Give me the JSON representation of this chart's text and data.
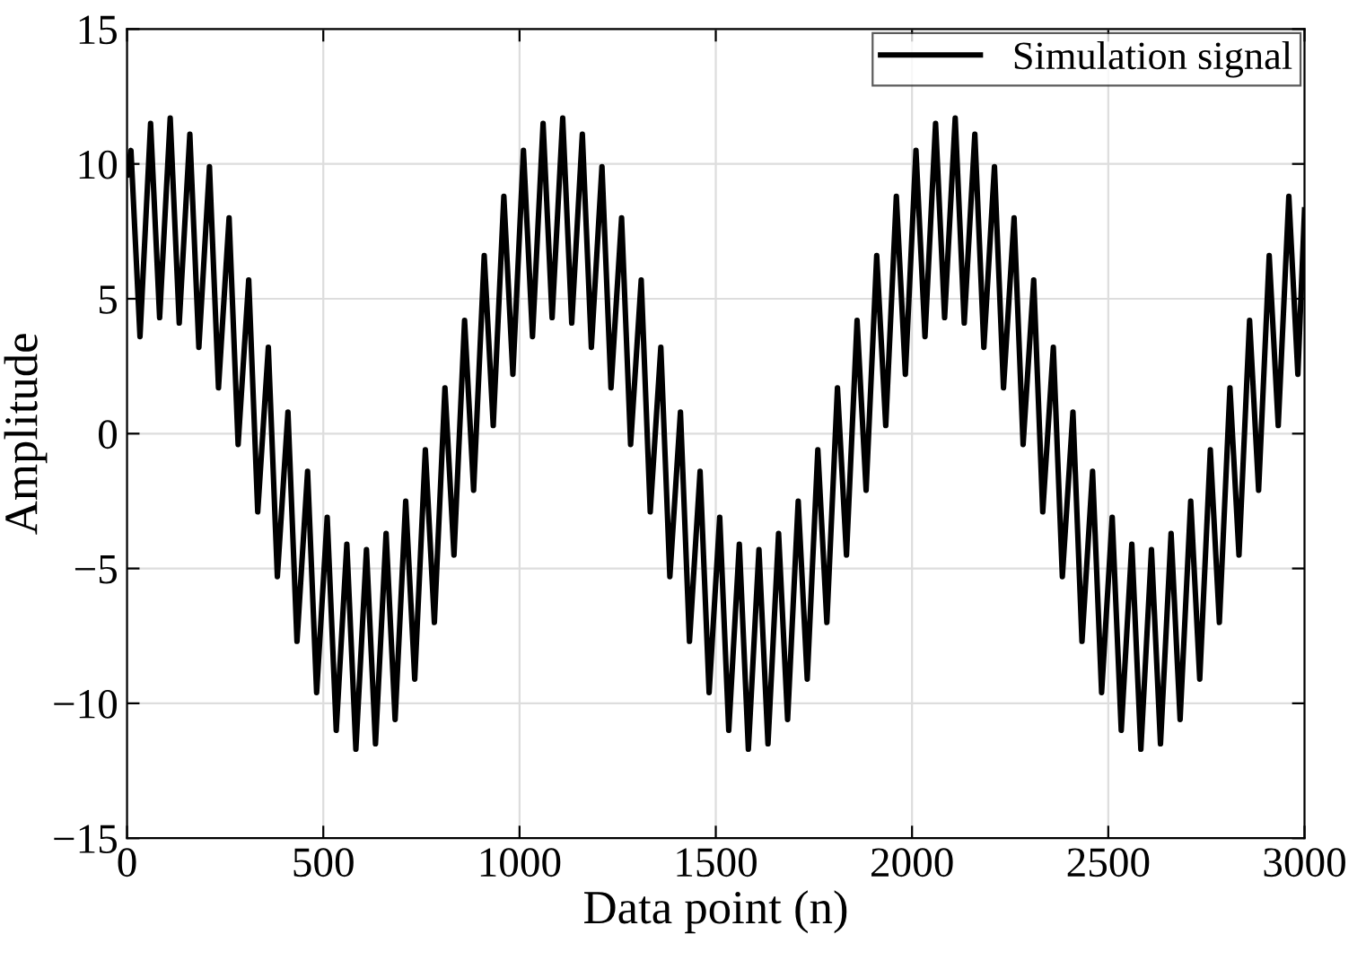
{
  "chart_data": {
    "type": "line",
    "xlabel": "Data point (n)",
    "ylabel": "Amplitude",
    "xlim": [
      0,
      3000
    ],
    "xticks": [
      0,
      500,
      1000,
      1500,
      2000,
      2500,
      3000
    ],
    "ylim": [
      -15,
      15
    ],
    "yticks": [
      -15,
      -10,
      -5,
      0,
      5,
      10,
      15
    ],
    "grid": true,
    "legend": "top right",
    "marker": "none",
    "line_style": "solid",
    "series": [
      {
        "name": "Simulation signal",
        "color": "#000000",
        "x": [
          0,
          10,
          33,
          60,
          83,
          110,
          133,
          160,
          183,
          210,
          233,
          260,
          283,
          310,
          333,
          360,
          383,
          410,
          433,
          460,
          483,
          510,
          533,
          560,
          583,
          610,
          633,
          660,
          683,
          710,
          733,
          760,
          783,
          810,
          833,
          860,
          883,
          910,
          933,
          960,
          983,
          1010,
          1033,
          1060,
          1083,
          1110,
          1133,
          1160,
          1183,
          1210,
          1233,
          1260,
          1283,
          1310,
          1333,
          1360,
          1383,
          1410,
          1433,
          1460,
          1483,
          1510,
          1533,
          1560,
          1583,
          1610,
          1633,
          1660,
          1683,
          1710,
          1733,
          1760,
          1783,
          1810,
          1833,
          1860,
          1883,
          1910,
          1933,
          1960,
          1983,
          2010,
          2033,
          2060,
          2083,
          2110,
          2133,
          2160,
          2183,
          2210,
          2233,
          2260,
          2283,
          2310,
          2333,
          2360,
          2383,
          2410,
          2433,
          2460,
          2483,
          2510,
          2533,
          2560,
          2583,
          2610,
          2633,
          2660,
          2683,
          2710,
          2733,
          2760,
          2783,
          2810,
          2833,
          2860,
          2883,
          2910,
          2933,
          2960,
          2983,
          3000
        ],
        "values": [
          9.6,
          10.5,
          3.6,
          11.5,
          4.3,
          11.7,
          4.1,
          11.1,
          3.2,
          9.9,
          1.7,
          8.0,
          -0.4,
          5.7,
          -2.9,
          3.2,
          -5.3,
          0.8,
          -7.7,
          -1.4,
          -9.6,
          -3.1,
          -11.0,
          -4.1,
          -11.7,
          -4.3,
          -11.5,
          -3.7,
          -10.6,
          -2.5,
          -9.1,
          -0.6,
          -7.0,
          1.7,
          -4.5,
          4.2,
          -2.1,
          6.6,
          0.3,
          8.8,
          2.2,
          10.5,
          3.6,
          11.5,
          4.3,
          11.7,
          4.1,
          11.1,
          3.2,
          9.9,
          1.7,
          8.0,
          -0.4,
          5.7,
          -2.9,
          3.2,
          -5.3,
          0.8,
          -7.7,
          -1.4,
          -9.6,
          -3.1,
          -11.0,
          -4.1,
          -11.7,
          -4.3,
          -11.5,
          -3.7,
          -10.6,
          -2.5,
          -9.1,
          -0.6,
          -7.0,
          1.7,
          -4.5,
          4.2,
          -2.1,
          6.6,
          0.3,
          8.8,
          2.2,
          10.5,
          3.6,
          11.5,
          4.3,
          11.7,
          4.1,
          11.1,
          3.2,
          9.9,
          1.7,
          8.0,
          -0.4,
          5.7,
          -2.9,
          3.2,
          -5.3,
          0.8,
          -7.7,
          -1.4,
          -9.6,
          -3.1,
          -11.0,
          -4.1,
          -11.7,
          -4.3,
          -11.5,
          -3.7,
          -10.6,
          -2.5,
          -9.1,
          -0.6,
          -7.0,
          1.7,
          -4.5,
          4.2,
          -2.1,
          6.6,
          0.3,
          8.8,
          2.2,
          8.3
        ]
      }
    ]
  }
}
